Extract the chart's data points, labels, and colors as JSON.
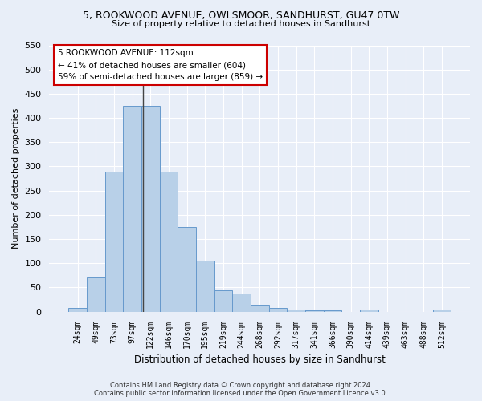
{
  "title": "5, ROOKWOOD AVENUE, OWLSMOOR, SANDHURST, GU47 0TW",
  "subtitle": "Size of property relative to detached houses in Sandhurst",
  "xlabel": "Distribution of detached houses by size in Sandhurst",
  "ylabel": "Number of detached properties",
  "bar_color": "#b8d0e8",
  "bar_edge_color": "#6699cc",
  "background_color": "#e8eef8",
  "figure_color": "#e8eef8",
  "grid_color": "#ffffff",
  "categories": [
    "24sqm",
    "49sqm",
    "73sqm",
    "97sqm",
    "122sqm",
    "146sqm",
    "170sqm",
    "195sqm",
    "219sqm",
    "244sqm",
    "268sqm",
    "292sqm",
    "317sqm",
    "341sqm",
    "366sqm",
    "390sqm",
    "414sqm",
    "439sqm",
    "463sqm",
    "488sqm",
    "512sqm"
  ],
  "values": [
    8,
    70,
    290,
    425,
    425,
    290,
    175,
    105,
    45,
    38,
    15,
    8,
    5,
    3,
    3,
    0,
    5,
    0,
    0,
    0,
    4
  ],
  "ylim": [
    0,
    550
  ],
  "yticks": [
    0,
    50,
    100,
    150,
    200,
    250,
    300,
    350,
    400,
    450,
    500,
    550
  ],
  "property_label": "5 ROOKWOOD AVENUE: 112sqm",
  "pct_smaller": "41% of detached houses are smaller (604)",
  "pct_larger": "59% of semi-detached houses are larger (859)",
  "annotation_box_color": "#ffffff",
  "annotation_box_edge": "#cc0000",
  "footer_line1": "Contains HM Land Registry data © Crown copyright and database right 2024.",
  "footer_line2": "Contains public sector information licensed under the Open Government Licence v3.0."
}
